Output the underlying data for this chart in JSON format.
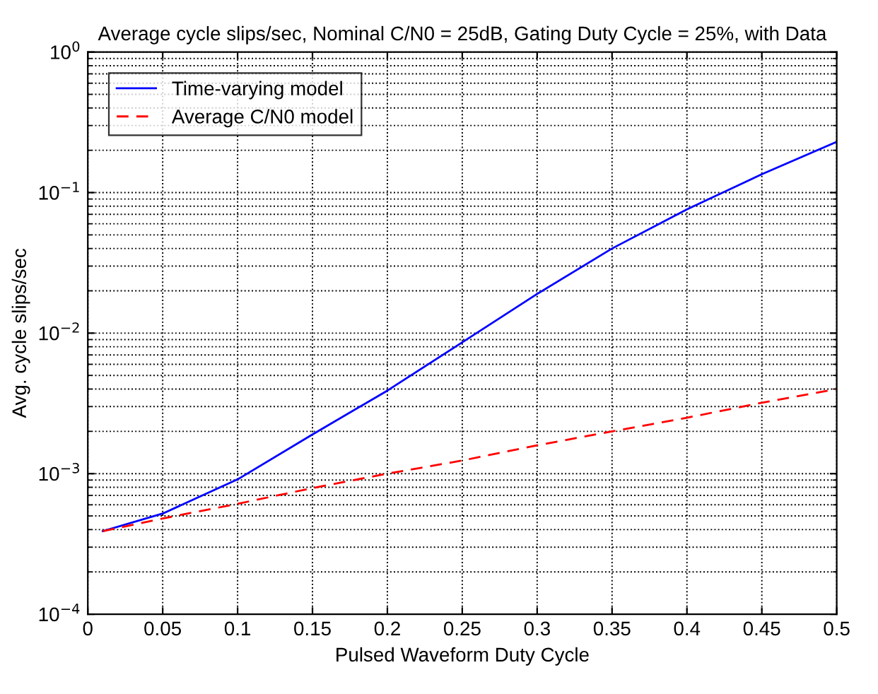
{
  "chart_data": {
    "type": "line",
    "title": "Average cycle slips/sec, Nominal C/N0 = 25dB, Gating Duty Cycle = 25%, with Data",
    "xlabel": "Pulsed Waveform Duty Cycle",
    "ylabel": "Avg. cycle slips/sec",
    "x": [
      0.01,
      0.05,
      0.1,
      0.15,
      0.2,
      0.25,
      0.3,
      0.35,
      0.4,
      0.45,
      0.5
    ],
    "series": [
      {
        "name": "Time-varying model",
        "color": "#0000ff",
        "line_style": "solid",
        "values": [
          0.00039,
          0.00052,
          0.00091,
          0.0019,
          0.0039,
          0.0086,
          0.019,
          0.04,
          0.076,
          0.135,
          0.23
        ]
      },
      {
        "name": "Average C/N0 model",
        "color": "#ff0000",
        "line_style": "dashed",
        "values": [
          0.00039,
          0.00048,
          0.00061,
          0.00079,
          0.001,
          0.00124,
          0.00159,
          0.002,
          0.0025,
          0.0032,
          0.004
        ]
      }
    ],
    "log": "y",
    "xlim": [
      0,
      0.5
    ],
    "ylim": [
      0.0001,
      1
    ],
    "xticks": [
      0,
      0.05,
      0.1,
      0.15,
      0.2,
      0.25,
      0.3,
      0.35,
      0.4,
      0.45,
      0.5
    ],
    "yticks": [
      {
        "value": 0.0001,
        "label": "10$^{−4}$"
      },
      {
        "value": 0.001,
        "label": "10$^{−3}$"
      },
      {
        "value": 0.01,
        "label": "10$^{−2}$"
      },
      {
        "value": 0.1,
        "label": "10$^{−1}$"
      },
      {
        "value": 1,
        "label": "10$^{0}$"
      }
    ],
    "grid": true,
    "legend": "top left",
    "marker": "none"
  }
}
